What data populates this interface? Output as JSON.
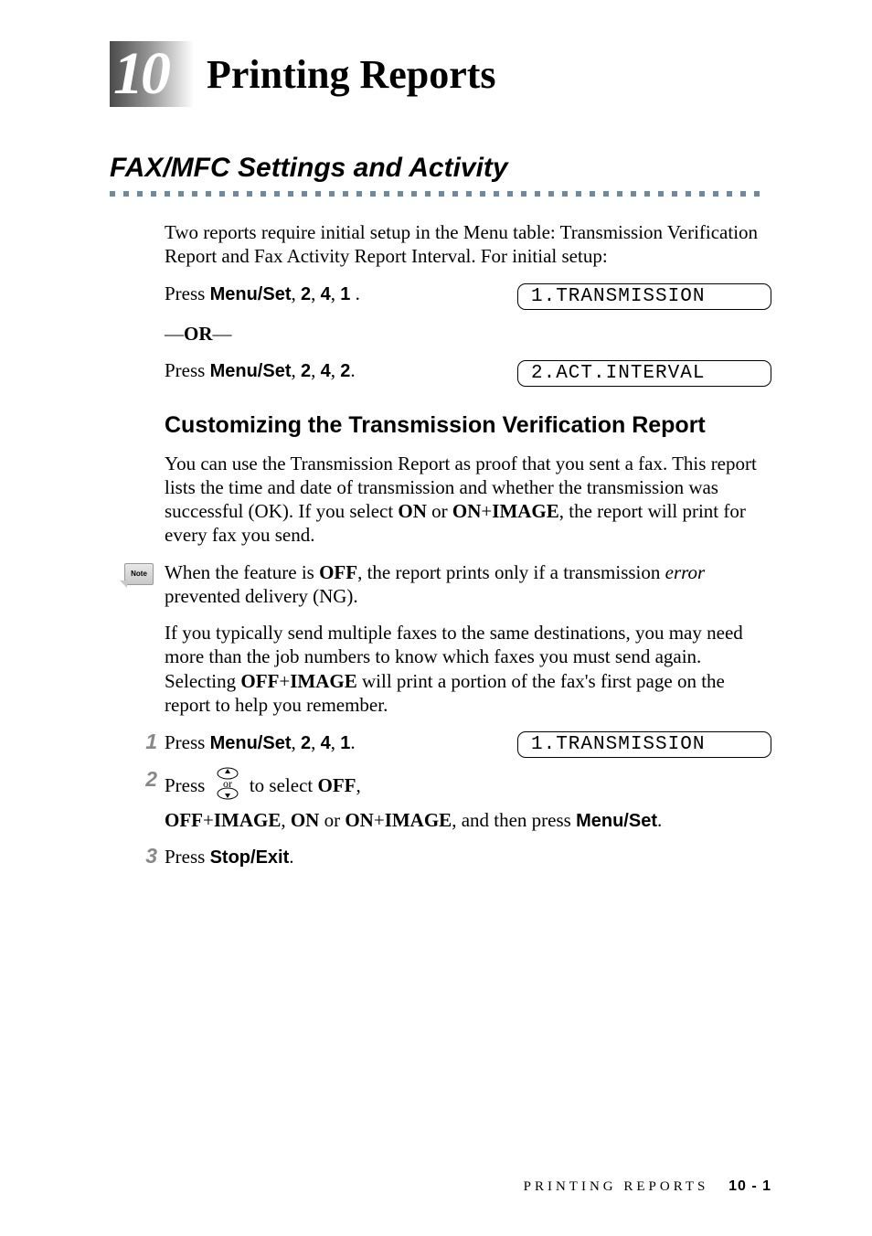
{
  "chapter": {
    "number": "10",
    "title": "Printing Reports",
    "badge_gradient_start": "#4a4a4a",
    "badge_gradient_end": "#ffffff",
    "number_color": "#ffffff"
  },
  "section": {
    "heading": "FAX/MFC Settings and Activity",
    "rule_color": "#6b8aa5",
    "rule_dash_count": 48
  },
  "intro": {
    "para": "Two reports require initial setup in the Menu table: Transmission Verification Report and Fax Activity Report Interval. For initial setup:",
    "press1_pre": "Press ",
    "press1_keys": "Menu/Set",
    "press1_post": ", ",
    "k2": "2",
    "k4": "4",
    "k1": "1",
    "period_space": " .",
    "lcd1": "1.TRANSMISSION",
    "or": "OR",
    "press2_keys": "Menu/Set",
    "press2_seq": "2",
    "press2_seq2": "4",
    "press2_seq3": "2",
    "lcd2": "2.ACT.INTERVAL"
  },
  "subsection": {
    "heading": "Customizing the Transmission Verification Report",
    "para1_a": "You can use the Transmission Report as proof that you sent a fax. This report lists the time and date of transmission and whether the transmission was successful (OK). If you select ",
    "on": "ON",
    "para1_b": " or ",
    "onimage": "ON",
    "plus": "+",
    "image": "IMAGE",
    "para1_c": ", the report will print for every fax you send.",
    "note_label": "Note",
    "note_a": "When the feature is ",
    "off": "OFF",
    "note_b": ", the report prints only if a transmission ",
    "note_err": "error",
    "note_c": " prevented delivery (NG).",
    "para2_a": "If you typically send multiple faxes to the same destinations, you may need more than the job numbers to know which faxes you must send again. Selecting ",
    "para2_b": " will print a portion of the fax's first page on the report to help you remember."
  },
  "steps": {
    "s1": {
      "num": "1",
      "pre": "Press ",
      "key": "Menu/Set",
      "a": "2",
      "b": "4",
      "c": "1",
      "lcd": "1.TRANSMISSION"
    },
    "s2": {
      "num": "2",
      "pre": "Press  ",
      "or": "or",
      "mid": "  to select ",
      "off": "OFF",
      "comma": ",",
      "offimage_off": "OFF",
      "offimage_plus": "+",
      "offimage_img": "IMAGE",
      "sep": ", ",
      "on": "ON",
      "or_word": " or ",
      "onimg_on": "ON",
      "onimg_plus": "+",
      "onimg_img": "IMAGE",
      "tail": ", and then press ",
      "menuset": "Menu/Set",
      "period": "."
    },
    "s3": {
      "num": "3",
      "pre": "Press ",
      "key": "Stop/Exit",
      "period": "."
    }
  },
  "footer": {
    "label": "PRINTING REPORTS",
    "page": "10 - 1"
  },
  "colors": {
    "step_num": "#888888",
    "lcd_font": "#000000",
    "text": "#000000"
  }
}
